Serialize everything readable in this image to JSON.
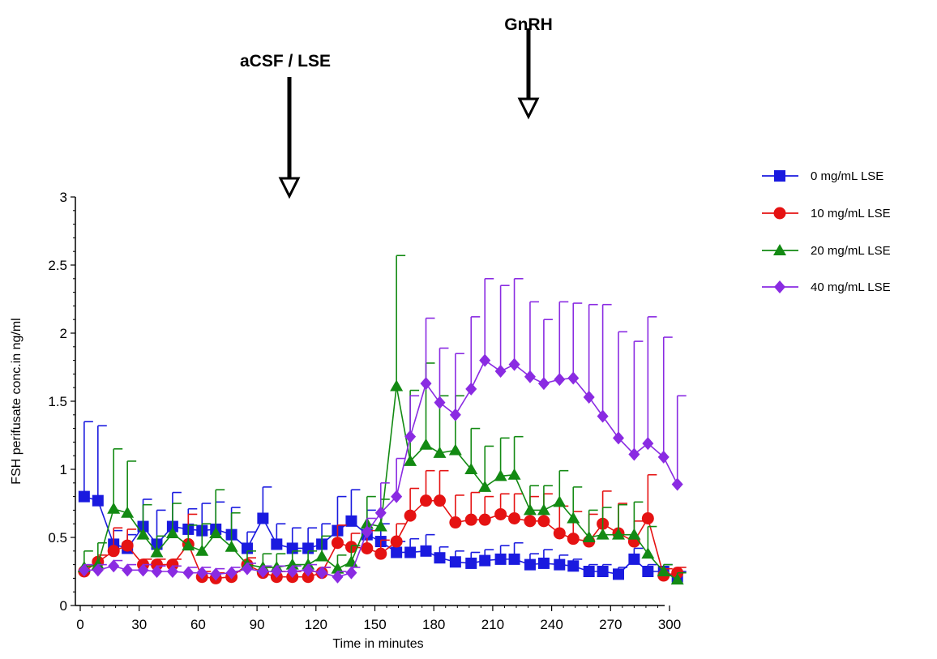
{
  "chart_data": {
    "type": "line",
    "title": "",
    "xlabel": "Time in minutes",
    "ylabel": "FSH perifusate conc.in ng/ml",
    "xlim": [
      0,
      300
    ],
    "ylim": [
      0,
      3
    ],
    "xticks": [
      0,
      30,
      60,
      90,
      120,
      150,
      180,
      210,
      240,
      270,
      300
    ],
    "xtick_labels": [
      "0",
      "30",
      "60",
      "90",
      "120",
      "150",
      "180",
      "210",
      "240",
      "270",
      "300"
    ],
    "yticks": [
      0,
      0.5,
      1,
      1.5,
      2,
      2.5,
      3
    ],
    "ytick_labels": [
      "0",
      "0.5",
      "1",
      "1.5",
      "2",
      "2.5",
      "3"
    ],
    "grid": false,
    "legend_position": "right",
    "annotations": [
      {
        "text": "aCSF / LSE",
        "x": 108
      },
      {
        "text": "GnRH",
        "x": 232
      }
    ],
    "x": [
      2,
      9,
      17,
      24,
      32,
      39,
      47,
      55,
      62,
      69,
      77,
      85,
      93,
      100,
      108,
      116,
      123,
      131,
      138,
      146,
      153,
      161,
      168,
      176,
      183,
      191,
      199,
      206,
      214,
      221,
      229,
      236,
      244,
      251,
      259,
      266,
      274,
      282,
      289,
      297,
      304
    ],
    "series": [
      {
        "name": "0 mg/mL LSE",
        "color": "#1a1adf",
        "marker": "square",
        "values": [
          0.8,
          0.77,
          0.45,
          0.42,
          0.58,
          0.45,
          0.58,
          0.56,
          0.55,
          0.56,
          0.52,
          0.42,
          0.64,
          0.45,
          0.42,
          0.42,
          0.45,
          0.55,
          0.62,
          0.52,
          0.47,
          0.39,
          0.39,
          0.4,
          0.35,
          0.32,
          0.31,
          0.33,
          0.34,
          0.34,
          0.3,
          0.31,
          0.3,
          0.29,
          0.25,
          0.25,
          0.23,
          0.34,
          0.25,
          0.25,
          0.21
        ],
        "errors": [
          0.55,
          0.55,
          0.1,
          0.1,
          0.2,
          0.25,
          0.25,
          0.15,
          0.2,
          0.2,
          0.2,
          0.12,
          0.23,
          0.15,
          0.15,
          0.15,
          0.15,
          0.25,
          0.23,
          0.18,
          0.13,
          0.08,
          0.1,
          0.12,
          0.08,
          0.08,
          0.08,
          0.08,
          0.1,
          0.12,
          0.08,
          0.1,
          0.07,
          0.05,
          0.05,
          0.05,
          0.05,
          0.08,
          0.05,
          0.05,
          0.04
        ]
      },
      {
        "name": "10 mg/mL LSE",
        "color": "#e51212",
        "marker": "circle",
        "values": [
          0.25,
          0.32,
          0.4,
          0.44,
          0.3,
          0.3,
          0.3,
          0.45,
          0.21,
          0.2,
          0.21,
          0.3,
          0.24,
          0.21,
          0.21,
          0.21,
          0.24,
          0.46,
          0.43,
          0.42,
          0.38,
          0.47,
          0.66,
          0.77,
          0.77,
          0.61,
          0.63,
          0.63,
          0.67,
          0.64,
          0.62,
          0.62,
          0.53,
          0.49,
          0.47,
          0.6,
          0.53,
          0.47,
          0.64,
          0.22,
          0.24
        ],
        "errors": [
          0.04,
          0.05,
          0.17,
          0.12,
          0.04,
          0.04,
          0.04,
          0.22,
          0.04,
          0.04,
          0.04,
          0.05,
          0.04,
          0.04,
          0.04,
          0.04,
          0.04,
          0.13,
          0.1,
          0.13,
          0.1,
          0.13,
          0.2,
          0.22,
          0.22,
          0.2,
          0.2,
          0.17,
          0.15,
          0.18,
          0.18,
          0.2,
          0.2,
          0.2,
          0.2,
          0.24,
          0.22,
          0.15,
          0.32,
          0.05,
          0.04
        ]
      },
      {
        "name": "20 mg/mL LSE",
        "color": "#138a13",
        "marker": "triangle",
        "values": [
          0.28,
          0.3,
          0.71,
          0.68,
          0.52,
          0.39,
          0.53,
          0.44,
          0.4,
          0.53,
          0.43,
          0.3,
          0.28,
          0.28,
          0.3,
          0.3,
          0.36,
          0.27,
          0.32,
          0.6,
          0.58,
          1.61,
          1.06,
          1.18,
          1.12,
          1.14,
          1.0,
          0.87,
          0.95,
          0.96,
          0.7,
          0.7,
          0.76,
          0.64,
          0.5,
          0.52,
          0.52,
          0.52,
          0.38,
          0.25,
          0.19
        ],
        "errors": [
          0.12,
          0.16,
          0.44,
          0.38,
          0.22,
          0.12,
          0.22,
          0.15,
          0.2,
          0.32,
          0.25,
          0.1,
          0.1,
          0.1,
          0.1,
          0.1,
          0.15,
          0.1,
          0.12,
          0.2,
          0.2,
          0.96,
          0.52,
          0.6,
          0.42,
          0.4,
          0.3,
          0.3,
          0.28,
          0.28,
          0.18,
          0.18,
          0.23,
          0.23,
          0.2,
          0.2,
          0.22,
          0.24,
          0.2,
          0.05,
          0.05
        ]
      },
      {
        "name": "40 mg/mL LSE",
        "color": "#8a2be2",
        "marker": "diamond",
        "values": [
          0.26,
          0.26,
          0.29,
          0.26,
          0.26,
          0.25,
          0.25,
          0.24,
          0.24,
          0.23,
          0.24,
          0.27,
          0.25,
          0.25,
          0.25,
          0.26,
          0.24,
          0.21,
          0.24,
          0.54,
          0.68,
          0.8,
          1.24,
          1.63,
          1.49,
          1.4,
          1.59,
          1.8,
          1.72,
          1.77,
          1.68,
          1.63,
          1.66,
          1.67,
          1.53,
          1.39,
          1.23,
          1.11,
          1.19,
          1.09,
          0.89
        ],
        "errors": [
          0.04,
          0.04,
          0.04,
          0.04,
          0.04,
          0.04,
          0.04,
          0.04,
          0.04,
          0.04,
          0.04,
          0.04,
          0.04,
          0.04,
          0.04,
          0.04,
          0.04,
          0.04,
          0.04,
          0.1,
          0.22,
          0.28,
          0.3,
          0.48,
          0.4,
          0.45,
          0.53,
          0.6,
          0.63,
          0.63,
          0.55,
          0.47,
          0.57,
          0.55,
          0.68,
          0.82,
          0.78,
          0.83,
          0.93,
          0.88,
          0.65
        ]
      }
    ]
  }
}
